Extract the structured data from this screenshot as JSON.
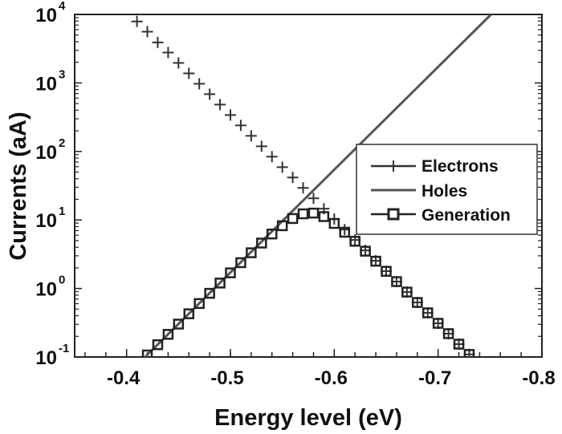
{
  "chart_data": {
    "type": "line",
    "xlabel": "Energy level (eV)",
    "ylabel": "Currents (aA)",
    "xlim": [
      -0.35,
      -0.8
    ],
    "ylim": [
      0.1,
      10000
    ],
    "yscale": "log",
    "grid": false,
    "legend_position": "right",
    "x_ticks": [
      "-0.4",
      "-0.5",
      "-0.6",
      "-0.7",
      "-0.8"
    ],
    "x_tick_values": [
      -0.4,
      -0.5,
      -0.6,
      -0.7,
      -0.8
    ],
    "y_ticks": [
      {
        "base": "10",
        "exp": "-1",
        "value": 0.1
      },
      {
        "base": "10",
        "exp": "0",
        "value": 1
      },
      {
        "base": "10",
        "exp": "1",
        "value": 10
      },
      {
        "base": "10",
        "exp": "2",
        "value": 100
      },
      {
        "base": "10",
        "exp": "3",
        "value": 1000
      },
      {
        "base": "10",
        "exp": "4",
        "value": 10000
      }
    ],
    "series": [
      {
        "name": "Electrons",
        "marker": "cross",
        "line": false,
        "color": "#333333",
        "x": [
          -0.41,
          -0.42,
          -0.43,
          -0.44,
          -0.45,
          -0.46,
          -0.47,
          -0.48,
          -0.49,
          -0.5,
          -0.51,
          -0.52,
          -0.53,
          -0.54,
          -0.55,
          -0.56,
          -0.57,
          -0.58,
          -0.59,
          -0.6,
          -0.61,
          -0.62,
          -0.63,
          -0.64,
          -0.65,
          -0.66,
          -0.67,
          -0.68,
          -0.69,
          -0.7,
          -0.71,
          -0.72,
          -0.73
        ],
        "y": [
          7900,
          5600,
          3900,
          2780,
          1960,
          1380,
          973,
          686,
          483,
          340,
          240,
          169,
          119,
          84,
          59,
          41.7,
          29.4,
          20.7,
          14.6,
          10.3,
          7.24,
          5.11,
          3.6,
          2.54,
          1.79,
          1.26,
          0.887,
          0.625,
          0.441,
          0.31,
          0.219,
          0.154,
          0.109
        ]
      },
      {
        "name": "Holes",
        "marker": "none",
        "line": true,
        "color": "#555555",
        "x": [
          -0.4,
          -0.751
        ],
        "y": [
          0.054,
          10000
        ]
      },
      {
        "name": "Generation",
        "marker": "square",
        "line": false,
        "color": "#222222",
        "x": [
          -0.42,
          -0.43,
          -0.44,
          -0.45,
          -0.46,
          -0.47,
          -0.48,
          -0.49,
          -0.5,
          -0.51,
          -0.52,
          -0.53,
          -0.54,
          -0.55,
          -0.56,
          -0.57,
          -0.58,
          -0.59,
          -0.6,
          -0.61,
          -0.62,
          -0.63,
          -0.64,
          -0.65,
          -0.66,
          -0.67,
          -0.68,
          -0.69,
          -0.7,
          -0.71,
          -0.72,
          -0.73
        ],
        "y": [
          0.107,
          0.151,
          0.214,
          0.302,
          0.427,
          0.603,
          0.85,
          1.2,
          1.69,
          2.38,
          3.32,
          4.6,
          6.24,
          8.24,
          10.5,
          12.3,
          12.6,
          11.2,
          8.9,
          6.62,
          4.89,
          3.5,
          2.5,
          1.78,
          1.26,
          0.886,
          0.625,
          0.441,
          0.31,
          0.219,
          0.154,
          0.109
        ]
      }
    ]
  }
}
